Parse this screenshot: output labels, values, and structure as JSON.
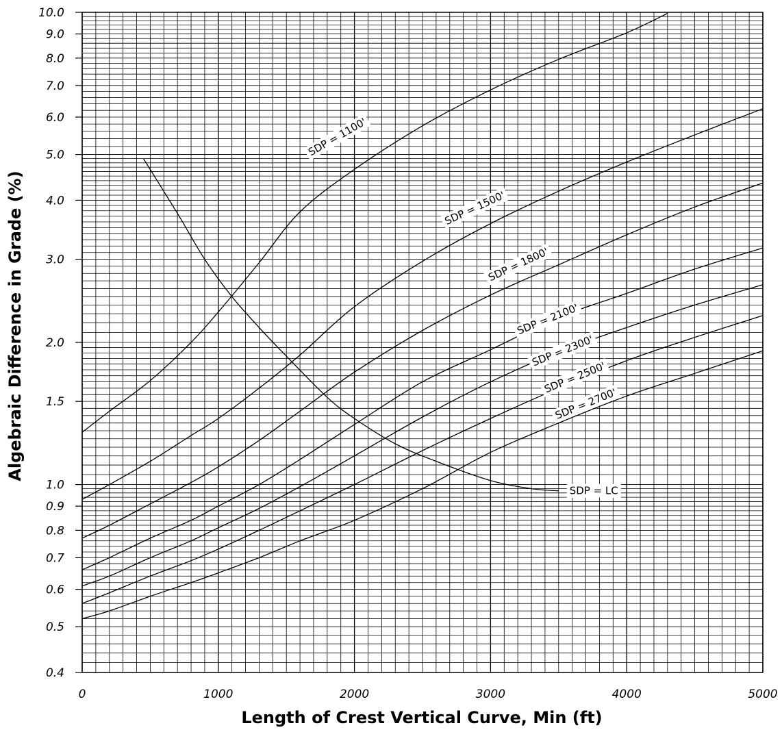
{
  "chart_data": {
    "type": "line",
    "xlabel": "Length  of Crest  Vertical Curve, Min  (ft)",
    "ylabel": "Algebraic  Difference  in  Grade  (%)",
    "xlim": [
      0,
      5000
    ],
    "ylim": [
      0.4,
      10.0
    ],
    "yscale": "log",
    "grid": true,
    "x_ticks": [
      {
        "value": 0,
        "label": "0"
      },
      {
        "value": 1000,
        "label": "1000"
      },
      {
        "value": 2000,
        "label": "2000"
      },
      {
        "value": 3000,
        "label": "3000"
      },
      {
        "value": 4000,
        "label": "4000"
      },
      {
        "value": 5000,
        "label": "5000"
      }
    ],
    "y_ticks": [
      {
        "value": 0.4,
        "label": "0.4"
      },
      {
        "value": 0.5,
        "label": "0.5"
      },
      {
        "value": 0.6,
        "label": "0.6"
      },
      {
        "value": 0.7,
        "label": "0.7"
      },
      {
        "value": 0.8,
        "label": "0.8"
      },
      {
        "value": 0.9,
        "label": "0.9"
      },
      {
        "value": 1.0,
        "label": "1.0"
      },
      {
        "value": 1.5,
        "label": "1.5"
      },
      {
        "value": 2.0,
        "label": "2.0"
      },
      {
        "value": 3.0,
        "label": "3.0"
      },
      {
        "value": 4.0,
        "label": "4.0"
      },
      {
        "value": 5.0,
        "label": "5.0"
      },
      {
        "value": 6.0,
        "label": "6.0"
      },
      {
        "value": 7.0,
        "label": "7.0"
      },
      {
        "value": 8.0,
        "label": "8.0"
      },
      {
        "value": 9.0,
        "label": "9.0"
      },
      {
        "value": 10.0,
        "label": "10.0"
      }
    ],
    "series": [
      {
        "name": "SDP = 1100'",
        "label_at": {
          "x": 1650,
          "y": 5.0,
          "angle": -30
        },
        "points": [
          [
            0,
            1.29
          ],
          [
            200,
            1.43
          ],
          [
            500,
            1.66
          ],
          [
            800,
            2.0
          ],
          [
            1000,
            2.32
          ],
          [
            1300,
            2.95
          ],
          [
            1600,
            3.78
          ],
          [
            2000,
            4.65
          ],
          [
            2500,
            5.75
          ],
          [
            3000,
            6.85
          ],
          [
            3500,
            7.95
          ],
          [
            4000,
            9.05
          ],
          [
            4300,
            9.95
          ]
        ]
      },
      {
        "name": "SDP = 1500'",
        "label_at": {
          "x": 2650,
          "y": 3.58,
          "angle": -25
        },
        "points": [
          [
            0,
            0.93
          ],
          [
            200,
            1.0
          ],
          [
            500,
            1.12
          ],
          [
            800,
            1.27
          ],
          [
            1000,
            1.38
          ],
          [
            1300,
            1.6
          ],
          [
            1600,
            1.88
          ],
          [
            2000,
            2.38
          ],
          [
            2500,
            2.97
          ],
          [
            3000,
            3.57
          ],
          [
            3500,
            4.18
          ],
          [
            4000,
            4.82
          ],
          [
            4500,
            5.5
          ],
          [
            5000,
            6.25
          ]
        ]
      },
      {
        "name": "SDP = 1800'",
        "label_at": {
          "x": 2970,
          "y": 2.72,
          "angle": -25
        },
        "points": [
          [
            0,
            0.77
          ],
          [
            200,
            0.82
          ],
          [
            500,
            0.91
          ],
          [
            800,
            1.01
          ],
          [
            1000,
            1.09
          ],
          [
            1300,
            1.24
          ],
          [
            1600,
            1.43
          ],
          [
            2000,
            1.73
          ],
          [
            2500,
            2.12
          ],
          [
            3000,
            2.52
          ],
          [
            3500,
            2.92
          ],
          [
            4000,
            3.38
          ],
          [
            4500,
            3.87
          ],
          [
            5000,
            4.35
          ]
        ]
      },
      {
        "name": "SDP = 2100'",
        "label_at": {
          "x": 3180,
          "y": 2.1,
          "angle": -22
        },
        "points": [
          [
            0,
            0.66
          ],
          [
            200,
            0.7
          ],
          [
            500,
            0.77
          ],
          [
            800,
            0.84
          ],
          [
            1000,
            0.9
          ],
          [
            1300,
            1.0
          ],
          [
            1600,
            1.13
          ],
          [
            2000,
            1.34
          ],
          [
            2500,
            1.65
          ],
          [
            3000,
            1.93
          ],
          [
            3500,
            2.26
          ],
          [
            4000,
            2.54
          ],
          [
            4500,
            2.86
          ],
          [
            5000,
            3.17
          ]
        ]
      },
      {
        "name": "SDP = 2300'",
        "label_at": {
          "x": 3290,
          "y": 1.8,
          "angle": -22
        },
        "points": [
          [
            0,
            0.61
          ],
          [
            200,
            0.64
          ],
          [
            500,
            0.7
          ],
          [
            800,
            0.76
          ],
          [
            1000,
            0.81
          ],
          [
            1300,
            0.89
          ],
          [
            1600,
            0.99
          ],
          [
            2000,
            1.15
          ],
          [
            2500,
            1.39
          ],
          [
            3000,
            1.65
          ],
          [
            3500,
            1.91
          ],
          [
            4000,
            2.15
          ],
          [
            4500,
            2.4
          ],
          [
            5000,
            2.65
          ]
        ]
      },
      {
        "name": "SDP = 2500'",
        "label_at": {
          "x": 3380,
          "y": 1.58,
          "angle": -22
        },
        "points": [
          [
            0,
            0.56
          ],
          [
            200,
            0.59
          ],
          [
            500,
            0.64
          ],
          [
            800,
            0.69
          ],
          [
            1000,
            0.73
          ],
          [
            1300,
            0.8
          ],
          [
            1600,
            0.88
          ],
          [
            2000,
            1.0
          ],
          [
            2500,
            1.18
          ],
          [
            3000,
            1.38
          ],
          [
            3500,
            1.6
          ],
          [
            4000,
            1.83
          ],
          [
            4500,
            2.05
          ],
          [
            5000,
            2.28
          ]
        ]
      },
      {
        "name": "SDP = 2700'",
        "label_at": {
          "x": 3460,
          "y": 1.39,
          "angle": -22
        },
        "points": [
          [
            0,
            0.52
          ],
          [
            200,
            0.54
          ],
          [
            500,
            0.58
          ],
          [
            800,
            0.62
          ],
          [
            1000,
            0.65
          ],
          [
            1300,
            0.7
          ],
          [
            1600,
            0.76
          ],
          [
            2000,
            0.84
          ],
          [
            2500,
            0.98
          ],
          [
            3000,
            1.17
          ],
          [
            3500,
            1.35
          ],
          [
            4000,
            1.54
          ],
          [
            4500,
            1.72
          ],
          [
            5000,
            1.92
          ]
        ]
      },
      {
        "name": "SDP = LC",
        "label_at": {
          "x": 3560,
          "y": 0.97,
          "angle": 0
        },
        "points": [
          [
            450,
            4.9
          ],
          [
            700,
            3.75
          ],
          [
            900,
            3.0
          ],
          [
            1100,
            2.5
          ],
          [
            1300,
            2.15
          ],
          [
            1500,
            1.87
          ],
          [
            1800,
            1.53
          ],
          [
            2000,
            1.38
          ],
          [
            2300,
            1.22
          ],
          [
            2600,
            1.12
          ],
          [
            3000,
            1.02
          ],
          [
            3300,
            0.98
          ],
          [
            3500,
            0.97
          ]
        ]
      }
    ]
  }
}
